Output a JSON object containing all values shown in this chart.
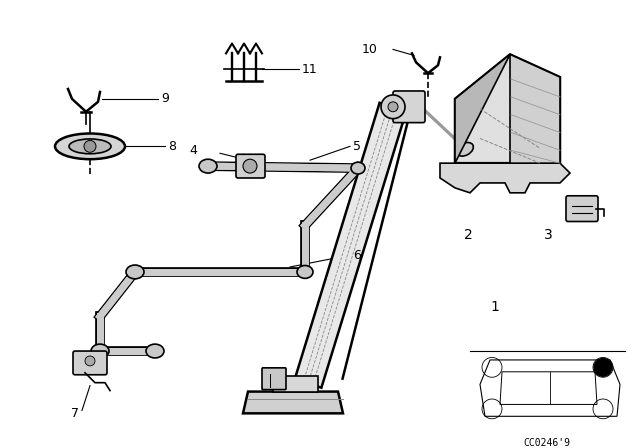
{
  "bg_color": "#ffffff",
  "line_color": "#000000",
  "diagram_code_text": "CC0246'9",
  "jack_color": "#e0e0e0",
  "jack_dark": "#aaaaaa",
  "rod_color": "#cccccc"
}
